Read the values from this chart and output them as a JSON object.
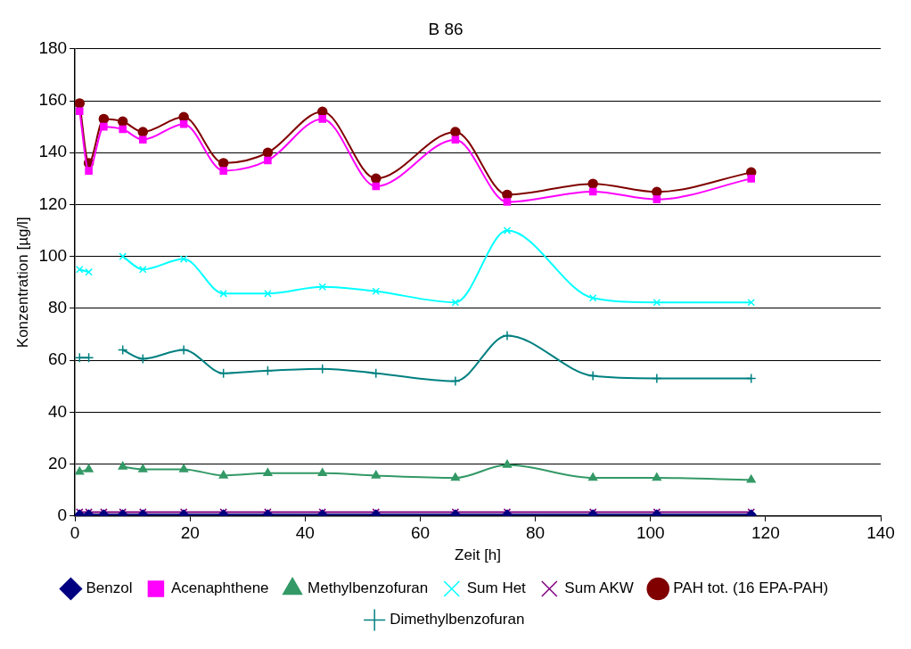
{
  "chart_data": {
    "type": "line",
    "title": "B 86",
    "xlabel": "Zeit [h]",
    "ylabel": "Konzentration [µg/l]",
    "x": [
      0.8,
      2.4,
      5,
      8.3,
      11.8,
      18.9,
      25.8,
      33.5,
      43,
      52.3,
      66.1,
      75.1,
      90,
      101.1,
      117.5
    ],
    "xlim": [
      0,
      140
    ],
    "xticks": [
      0,
      20,
      40,
      60,
      80,
      100,
      120,
      140
    ],
    "ylim": [
      0,
      180
    ],
    "yticks": [
      0,
      20,
      40,
      60,
      80,
      100,
      120,
      140,
      160,
      180
    ],
    "grid": "y",
    "legend": "bottom",
    "series": [
      {
        "name": "Benzol",
        "color": "#000080",
        "marker": "diamond",
        "values": [
          0.5,
          0.5,
          0.5,
          0.5,
          0.5,
          0.5,
          0.5,
          0.5,
          0.5,
          0.5,
          0.5,
          0.5,
          0.5,
          0.5,
          0.5
        ]
      },
      {
        "name": "Acenaphthene",
        "color": "#ff00ff",
        "marker": "square",
        "values": [
          156,
          133,
          150,
          149,
          145,
          151,
          133,
          137,
          153,
          127,
          145,
          121,
          125,
          122,
          130
        ]
      },
      {
        "name": "Methylbenzofuran",
        "color": "#339966",
        "marker": "triangle",
        "values": [
          17,
          18,
          null,
          19,
          18,
          18,
          15.6,
          16.5,
          16.5,
          15.6,
          14.7,
          19.7,
          14.7,
          14.7,
          13.9
        ]
      },
      {
        "name": "Sum Het",
        "color": "#00ffff",
        "marker": "cross",
        "values": [
          95,
          94,
          null,
          100,
          95,
          99,
          85.7,
          85.7,
          88.3,
          86.6,
          82.3,
          110,
          84,
          82.3,
          82.3
        ]
      },
      {
        "name": "Sum AKW",
        "color": "#800080",
        "marker": "cross",
        "values": [
          1.5,
          1.5,
          1.5,
          1.5,
          1.5,
          1.5,
          1.5,
          1.5,
          1.5,
          1.5,
          1.5,
          1.5,
          1.5,
          1.5,
          1.5
        ]
      },
      {
        "name": "PAH tot. (16 EPA-PAH)",
        "color": "#800000",
        "marker": "circle",
        "values": [
          159,
          136,
          153,
          152,
          148,
          153.7,
          136,
          140,
          155.8,
          130,
          148,
          123.8,
          128,
          124.9,
          132.4
        ]
      },
      {
        "name": "Dimethylbenzofuran",
        "color": "#008080",
        "marker": "plus",
        "values": [
          61,
          61,
          null,
          64,
          60.6,
          64,
          55,
          56,
          56.7,
          55,
          52,
          69.5,
          54,
          53,
          53
        ]
      }
    ]
  }
}
